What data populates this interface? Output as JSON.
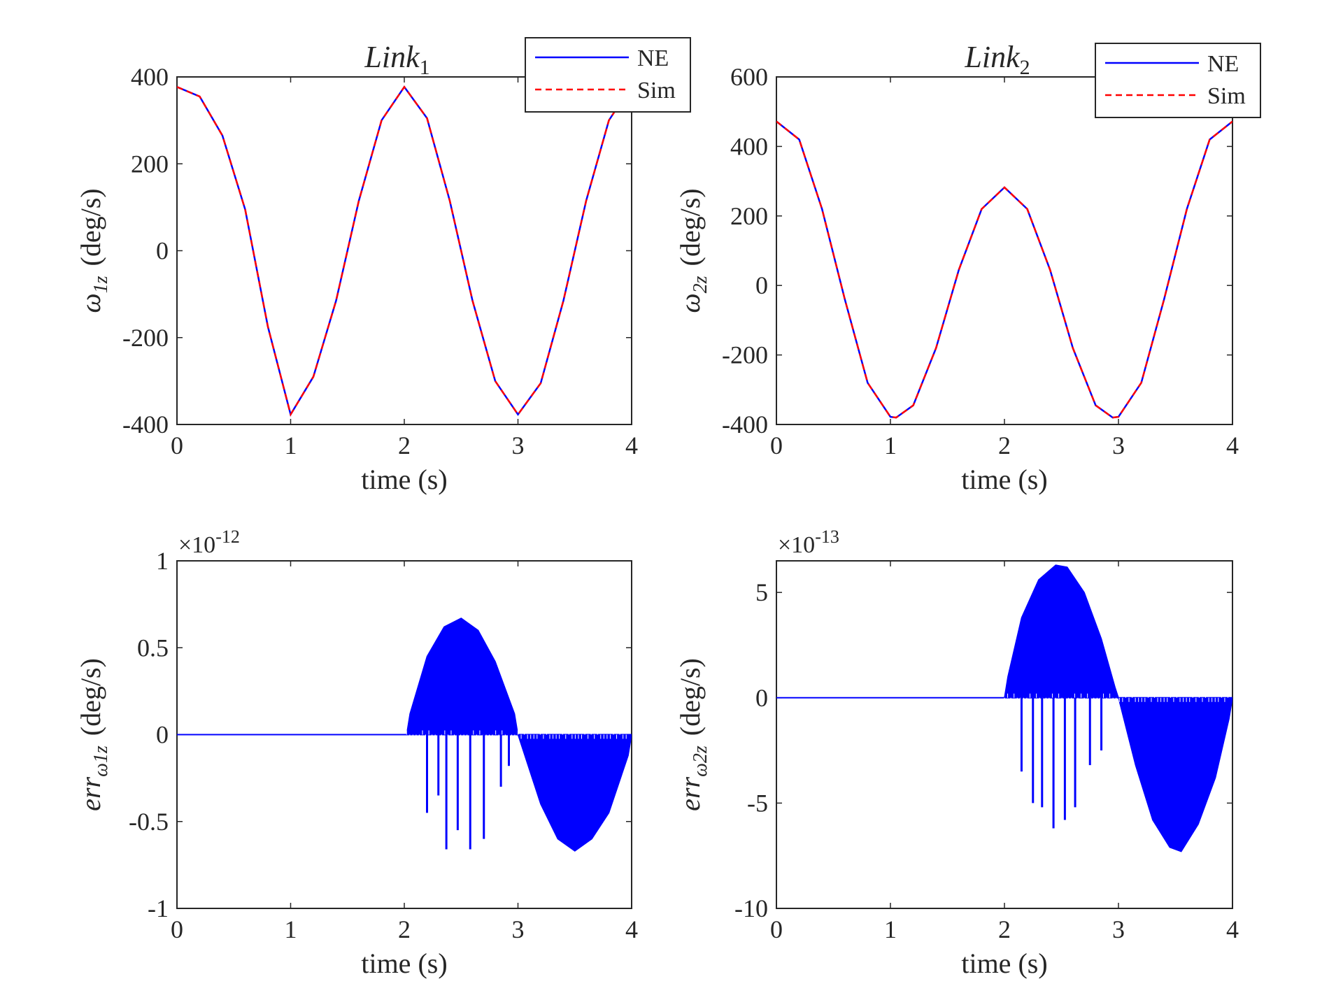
{
  "figure": {
    "background": "#ffffff",
    "axis_color": "#262626"
  },
  "chart_data": [
    {
      "type": "line",
      "title": "Link",
      "title_sub": "1",
      "xlabel": "time (s)",
      "ylabel_symbol": "ω",
      "ylabel_sub": "1z",
      "ylabel_units": "(deg/s)",
      "xlim": [
        0,
        4
      ],
      "ylim": [
        -400,
        400
      ],
      "xticks": [
        0,
        1,
        2,
        3,
        4
      ],
      "yticks": [
        -400,
        -200,
        0,
        200,
        400
      ],
      "ytick_labels": [
        "-400",
        "-200",
        "0",
        "200",
        "400"
      ],
      "exponent_label": "",
      "grid": false,
      "legend": {
        "position": "top-right",
        "entries": [
          "NE",
          "Sim"
        ]
      },
      "series": [
        {
          "name": "NE",
          "color": "#0000ff",
          "style": "solid",
          "x": [
            0,
            0.2,
            0.4,
            0.6,
            0.8,
            1.0,
            1.2,
            1.4,
            1.6,
            1.8,
            2.0,
            2.2,
            2.4,
            2.6,
            2.8,
            3.0,
            3.2,
            3.4,
            3.6,
            3.8,
            3.9
          ],
          "y": [
            377,
            355,
            265,
            95,
            -175,
            -377,
            -290,
            -115,
            115,
            300,
            377,
            305,
            115,
            -115,
            -300,
            -377,
            -305,
            -115,
            115,
            300,
            340
          ]
        },
        {
          "name": "Sim",
          "color": "#ff0000",
          "style": "dashed",
          "x": [
            0,
            0.2,
            0.4,
            0.6,
            0.8,
            1.0,
            1.2,
            1.4,
            1.6,
            1.8,
            2.0,
            2.2,
            2.4,
            2.6,
            2.8,
            3.0,
            3.2,
            3.4,
            3.6,
            3.8,
            3.9
          ],
          "y": [
            377,
            355,
            265,
            95,
            -175,
            -377,
            -290,
            -115,
            115,
            300,
            377,
            305,
            115,
            -115,
            -300,
            -377,
            -305,
            -115,
            115,
            300,
            340
          ]
        }
      ]
    },
    {
      "type": "line",
      "title": "Link",
      "title_sub": "2",
      "xlabel": "time (s)",
      "ylabel_symbol": "ω",
      "ylabel_sub": "2z",
      "ylabel_units": "(deg/s)",
      "xlim": [
        0,
        4
      ],
      "ylim": [
        -400,
        600
      ],
      "xticks": [
        0,
        1,
        2,
        3,
        4
      ],
      "yticks": [
        -400,
        -200,
        0,
        200,
        400,
        600
      ],
      "ytick_labels": [
        "-400",
        "-200",
        "0",
        "200",
        "400",
        "600"
      ],
      "exponent_label": "",
      "grid": false,
      "legend": {
        "position": "top-right",
        "entries": [
          "NE",
          "Sim"
        ]
      },
      "series": [
        {
          "name": "NE",
          "color": "#0000ff",
          "style": "solid",
          "x": [
            0,
            0.2,
            0.4,
            0.6,
            0.8,
            1.0,
            1.05,
            1.2,
            1.4,
            1.6,
            1.8,
            2.0,
            2.2,
            2.4,
            2.6,
            2.8,
            2.95,
            3.0,
            3.2,
            3.4,
            3.6,
            3.8,
            4.0
          ],
          "y": [
            472,
            420,
            220,
            -40,
            -280,
            -378,
            -380,
            -345,
            -180,
            45,
            220,
            282,
            220,
            45,
            -180,
            -345,
            -380,
            -378,
            -280,
            -40,
            220,
            420,
            472
          ]
        },
        {
          "name": "Sim",
          "color": "#ff0000",
          "style": "dashed",
          "x": [
            0,
            0.2,
            0.4,
            0.6,
            0.8,
            1.0,
            1.05,
            1.2,
            1.4,
            1.6,
            1.8,
            2.0,
            2.2,
            2.4,
            2.6,
            2.8,
            2.95,
            3.0,
            3.2,
            3.4,
            3.6,
            3.8,
            4.0
          ],
          "y": [
            472,
            420,
            220,
            -40,
            -280,
            -378,
            -380,
            -345,
            -180,
            45,
            220,
            282,
            220,
            45,
            -180,
            -345,
            -380,
            -378,
            -280,
            -40,
            220,
            420,
            472
          ]
        }
      ]
    },
    {
      "type": "line",
      "title": "",
      "title_sub": "",
      "xlabel": "time (s)",
      "ylabel_symbol": "err",
      "ylabel_sub": "ω1z",
      "ylabel_units": "(deg/s)",
      "xlim": [
        0,
        4
      ],
      "ylim": [
        -1,
        1
      ],
      "xticks": [
        0,
        1,
        2,
        3,
        4
      ],
      "yticks": [
        -1,
        -0.5,
        0,
        0.5,
        1
      ],
      "ytick_labels": [
        "-1",
        "-0.5",
        "0",
        "0.5",
        "1"
      ],
      "exponent_label": "×10",
      "exponent_power": "-12",
      "grid": false,
      "legend": null,
      "series": [
        {
          "color": "#0000ff",
          "style": "solid",
          "x": [
            0,
            2.02,
            2.05,
            2.2,
            2.35,
            2.5,
            2.65,
            2.8,
            2.97,
            3.0,
            3.2,
            3.35,
            3.5,
            3.65,
            3.8,
            3.97,
            4.0
          ],
          "y": [
            0,
            0,
            0.12,
            0.45,
            0.62,
            0.67,
            0.6,
            0.42,
            0.12,
            0,
            -0.4,
            -0.6,
            -0.67,
            -0.6,
            -0.45,
            -0.12,
            0
          ]
        }
      ],
      "negative_spikes": [
        {
          "x": 2.2,
          "y": -0.45
        },
        {
          "x": 2.3,
          "y": -0.35
        },
        {
          "x": 2.37,
          "y": -0.66
        },
        {
          "x": 2.47,
          "y": -0.55
        },
        {
          "x": 2.58,
          "y": -0.66
        },
        {
          "x": 2.7,
          "y": -0.6
        },
        {
          "x": 2.85,
          "y": -0.3
        },
        {
          "x": 2.92,
          "y": -0.18
        }
      ],
      "positive_spikes": [
        {
          "x": 3.1,
          "y": 0.0
        }
      ]
    },
    {
      "type": "line",
      "title": "",
      "title_sub": "",
      "xlabel": "time (s)",
      "ylabel_symbol": "err",
      "ylabel_sub": "ω2z",
      "ylabel_units": "(deg/s)",
      "xlim": [
        0,
        4
      ],
      "ylim": [
        -10,
        6.5
      ],
      "xticks": [
        0,
        1,
        2,
        3,
        4
      ],
      "yticks": [
        -10,
        -5,
        0,
        5
      ],
      "ytick_labels": [
        "-10",
        "-5",
        "0",
        "5"
      ],
      "exponent_label": "×10",
      "exponent_power": "-13",
      "grid": false,
      "legend": null,
      "series": [
        {
          "color": "#0000ff",
          "style": "solid",
          "x": [
            0,
            2.0,
            2.03,
            2.15,
            2.3,
            2.45,
            2.55,
            2.7,
            2.85,
            2.97,
            3.0,
            3.15,
            3.3,
            3.45,
            3.55,
            3.7,
            3.85,
            3.97,
            4.0
          ],
          "y": [
            0,
            0,
            1.0,
            3.8,
            5.6,
            6.3,
            6.2,
            5.0,
            2.8,
            0.5,
            0,
            -3.2,
            -5.8,
            -7.1,
            -7.3,
            -6.0,
            -3.8,
            -1.0,
            0
          ]
        }
      ],
      "negative_spikes": [
        {
          "x": 2.15,
          "y": -3.5
        },
        {
          "x": 2.25,
          "y": -5.0
        },
        {
          "x": 2.33,
          "y": -5.2
        },
        {
          "x": 2.43,
          "y": -6.2
        },
        {
          "x": 2.53,
          "y": -5.8
        },
        {
          "x": 2.62,
          "y": -5.2
        },
        {
          "x": 2.75,
          "y": -3.2
        },
        {
          "x": 2.85,
          "y": -2.5
        }
      ],
      "positive_spikes": []
    }
  ]
}
